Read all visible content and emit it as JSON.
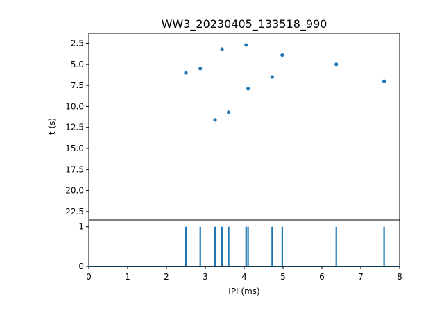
{
  "chart_data": [
    {
      "type": "scatter",
      "title": "WW3_20230405_133518_990",
      "xlabel": "",
      "ylabel": "t (s)",
      "xlim": [
        0,
        8
      ],
      "ylim": [
        23.5,
        1.3
      ],
      "y_inverted": true,
      "yticks": [
        2.5,
        5.0,
        7.5,
        10.0,
        12.5,
        15.0,
        17.5,
        20.0,
        22.5
      ],
      "ytick_labels": [
        "2.5",
        "5.0",
        "7.5",
        "10.0",
        "12.5",
        "15.0",
        "17.5",
        "20.0",
        "22.5"
      ],
      "grid": false,
      "color": "#1f77b4",
      "points": [
        {
          "x": 2.5,
          "y": 6.0
        },
        {
          "x": 2.87,
          "y": 5.5
        },
        {
          "x": 3.25,
          "y": 11.6
        },
        {
          "x": 3.43,
          "y": 3.2
        },
        {
          "x": 3.6,
          "y": 10.7
        },
        {
          "x": 4.05,
          "y": 2.7
        },
        {
          "x": 4.1,
          "y": 7.9
        },
        {
          "x": 4.72,
          "y": 6.5
        },
        {
          "x": 4.98,
          "y": 3.9
        },
        {
          "x": 6.37,
          "y": 5.0
        },
        {
          "x": 7.6,
          "y": 7.0
        }
      ]
    },
    {
      "type": "line",
      "xlabel": "IPI (ms)",
      "ylabel": "",
      "xlim": [
        0,
        8
      ],
      "ylim": [
        0,
        1.17
      ],
      "xticks": [
        0,
        1,
        2,
        3,
        4,
        5,
        6,
        7,
        8
      ],
      "xtick_labels": [
        "0",
        "1",
        "2",
        "3",
        "4",
        "5",
        "6",
        "7",
        "8"
      ],
      "yticks": [
        0,
        1
      ],
      "ytick_labels": [
        "0",
        "1"
      ],
      "grid": false,
      "color": "#1f77b4",
      "spikes": [
        2.5,
        2.87,
        3.25,
        3.43,
        3.6,
        4.05,
        4.1,
        4.72,
        4.98,
        6.37,
        7.6
      ],
      "spike_height": 1
    }
  ]
}
